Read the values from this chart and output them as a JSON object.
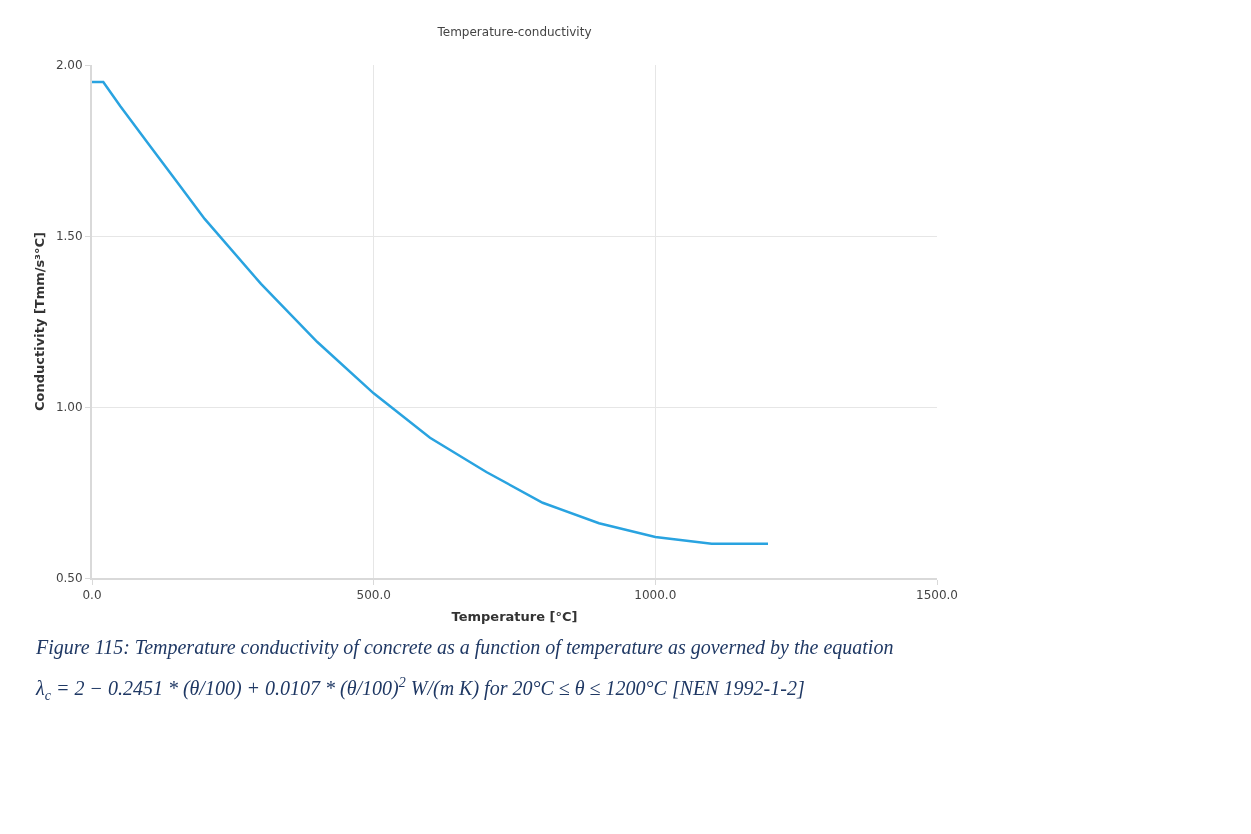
{
  "chart_data": {
    "type": "line",
    "title": "Temperature-conductivity",
    "xlabel": "Temperature [°C]",
    "ylabel": "Conductivity [Tmm/s³°C]",
    "annotations": [
      "Figure 115: Temperature conductivity of concrete as a function of temperature as governed by the equation",
      "λ$_{c}$ = 2 − 0.2451 * (θ/100) + 0.0107 * (θ/100)$^{2}$ W/(m K) for 20°C ≤ θ ≤ 1200°C [NEN 1992-1-2]"
    ],
    "series": [
      {
        "color": "#29a3e0",
        "x": [
          0,
          20,
          50,
          100,
          150,
          200,
          300,
          400,
          500,
          600,
          700,
          800,
          900,
          1000,
          1100,
          1200
        ],
        "values": [
          1.95,
          1.95,
          1.88,
          1.77,
          1.66,
          1.55,
          1.36,
          1.19,
          1.04,
          0.91,
          0.81,
          0.72,
          0.66,
          0.62,
          0.6,
          0.6
        ]
      }
    ],
    "xlim": [
      0,
      1500
    ],
    "xticks": [
      {
        "value": 0,
        "label": "0.0"
      },
      {
        "value": 500,
        "label": "500.0"
      },
      {
        "value": 1000,
        "label": "1000.0"
      },
      {
        "value": 1500,
        "label": "1500.0"
      }
    ],
    "ylim": [
      0.5,
      2.0
    ],
    "yticks": [
      {
        "value": 0.5,
        "label": "0.50"
      },
      {
        "value": 1.0,
        "label": "1.00"
      },
      {
        "value": 1.5,
        "label": "1.50"
      },
      {
        "value": 2.0,
        "label": "2.00"
      }
    ],
    "grid": true,
    "line_style": "solid",
    "marker": "none"
  }
}
